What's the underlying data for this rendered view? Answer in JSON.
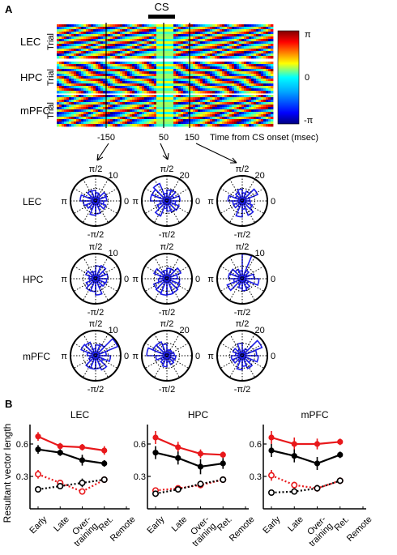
{
  "panels": {
    "a_letter": "A",
    "b_letter": "B"
  },
  "panel_a": {
    "cs_label": "CS",
    "regions": [
      "LEC",
      "HPC",
      "mPFC"
    ],
    "trial_label": "Trial",
    "colorbar": {
      "top": "π",
      "mid": "0",
      "bottom": "-π"
    },
    "time_ticks": [
      "-150",
      "50",
      "150"
    ],
    "time_axis_label": "Time from CS onset (msec)",
    "polar_angle_labels": {
      "top": "π/2",
      "left": "π",
      "right": "0",
      "bottom": "-π/2"
    },
    "polar_scales": [
      [
        "10",
        "20",
        "20"
      ],
      [
        "10",
        "",
        "10"
      ],
      [
        "10",
        "20",
        "20"
      ]
    ]
  },
  "chart_data": [
    {
      "type": "line",
      "title": "LEC",
      "ylabel": "Resultant vector length",
      "categories": [
        "Early",
        "Late",
        "Over-training",
        "Ret.",
        "Remote"
      ],
      "category_labels": [
        "Early",
        "Late",
        "Over-\ntraining",
        "Ret.",
        "Remote"
      ],
      "ylim": [
        0,
        0.75
      ],
      "yticks": [
        "0.6",
        "0.3"
      ],
      "series": [
        {
          "style": "solid",
          "color": "#e8181b",
          "values": [
            0.67,
            0.58,
            0.57,
            0.54,
            null
          ],
          "errors": [
            0.04,
            0.03,
            0.03,
            0.04,
            null
          ]
        },
        {
          "style": "solid",
          "color": "#000000",
          "values": [
            0.55,
            0.52,
            0.45,
            0.42,
            null
          ],
          "errors": [
            0.04,
            0.03,
            0.05,
            0.03,
            null
          ]
        },
        {
          "style": "dotted",
          "color": "#e8181b",
          "values": [
            0.32,
            0.24,
            0.16,
            0.27,
            null
          ],
          "errors": [
            0.04,
            0.03,
            0.02,
            0.03,
            null
          ]
        },
        {
          "style": "dotted",
          "color": "#000000",
          "values": [
            0.18,
            0.21,
            0.24,
            0.27,
            null
          ],
          "errors": [
            0.02,
            0.02,
            0.04,
            0.03,
            null
          ]
        }
      ]
    },
    {
      "type": "line",
      "title": "HPC",
      "categories": [
        "Early",
        "Late",
        "Over-training",
        "Ret.",
        "Remote"
      ],
      "category_labels": [
        "Early",
        "Late",
        "Over-\ntraining",
        "Ret.",
        "Remote"
      ],
      "ylim": [
        0,
        0.75
      ],
      "yticks": [
        "0.6",
        "0.3"
      ],
      "series": [
        {
          "style": "solid",
          "color": "#e8181b",
          "values": [
            0.66,
            0.57,
            0.51,
            0.5,
            null
          ],
          "errors": [
            0.06,
            0.05,
            0.04,
            0.03,
            null
          ]
        },
        {
          "style": "solid",
          "color": "#000000",
          "values": [
            0.52,
            0.47,
            0.39,
            0.42,
            null
          ],
          "errors": [
            0.06,
            0.06,
            0.07,
            0.05,
            null
          ]
        },
        {
          "style": "dotted",
          "color": "#e8181b",
          "values": [
            0.17,
            0.19,
            0.22,
            0.27,
            null
          ],
          "errors": [
            0.02,
            0.02,
            0.03,
            0.03,
            null
          ]
        },
        {
          "style": "dotted",
          "color": "#000000",
          "values": [
            0.14,
            0.18,
            0.23,
            0.27,
            null
          ],
          "errors": [
            0.02,
            0.02,
            0.03,
            0.03,
            null
          ]
        }
      ]
    },
    {
      "type": "line",
      "title": "mPFC",
      "categories": [
        "Early",
        "Late",
        "Over-training",
        "Ret.",
        "Remote"
      ],
      "category_labels": [
        "Early",
        "Late",
        "Over-\ntraining",
        "Ret.",
        "Remote"
      ],
      "ylim": [
        0,
        0.75
      ],
      "yticks": [
        "0.6",
        "0.3"
      ],
      "series": [
        {
          "style": "solid",
          "color": "#e8181b",
          "values": [
            0.66,
            0.6,
            0.6,
            0.62,
            null
          ],
          "errors": [
            0.06,
            0.06,
            0.05,
            0.03,
            null
          ]
        },
        {
          "style": "solid",
          "color": "#000000",
          "values": [
            0.54,
            0.49,
            0.42,
            0.5,
            null
          ],
          "errors": [
            0.06,
            0.06,
            0.06,
            0.03,
            null
          ]
        },
        {
          "style": "dotted",
          "color": "#e8181b",
          "values": [
            0.31,
            0.22,
            0.19,
            0.26,
            null
          ],
          "errors": [
            0.05,
            0.03,
            0.03,
            0.03,
            null
          ]
        },
        {
          "style": "dotted",
          "color": "#000000",
          "values": [
            0.15,
            0.16,
            0.19,
            0.26,
            null
          ],
          "errors": [
            0.02,
            0.02,
            0.03,
            0.03,
            null
          ]
        }
      ]
    }
  ]
}
